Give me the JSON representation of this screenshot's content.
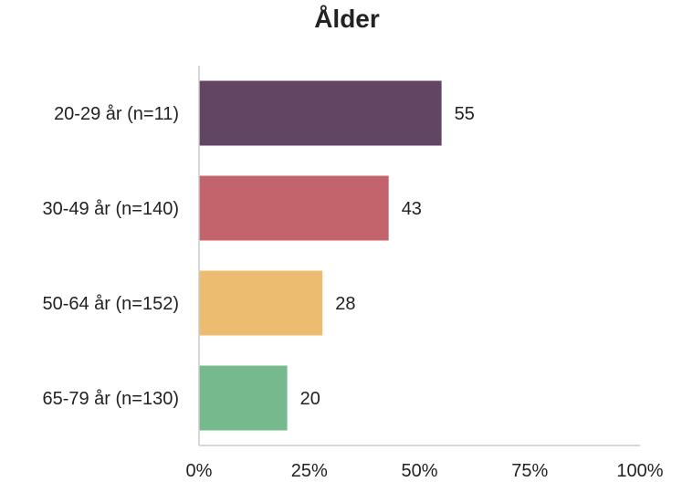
{
  "chart_data": {
    "type": "bar",
    "orientation": "horizontal",
    "title": "Ålder",
    "categories": [
      "20-29 år (n=11)",
      "30-49 år (n=140)",
      "50-64 år (n=152)",
      "65-79 år (n=130)"
    ],
    "values": [
      55,
      43,
      28,
      20
    ],
    "colors": [
      "#614563",
      "#c3646d",
      "#ecbc70",
      "#75b98d"
    ],
    "xlim": [
      0,
      100
    ],
    "xticks": [
      0,
      25,
      50,
      75,
      100
    ],
    "xtick_labels": [
      "0%",
      "25%",
      "50%",
      "75%",
      "100%"
    ],
    "grid": false,
    "data_labels": true,
    "xlabel": "",
    "ylabel": ""
  }
}
